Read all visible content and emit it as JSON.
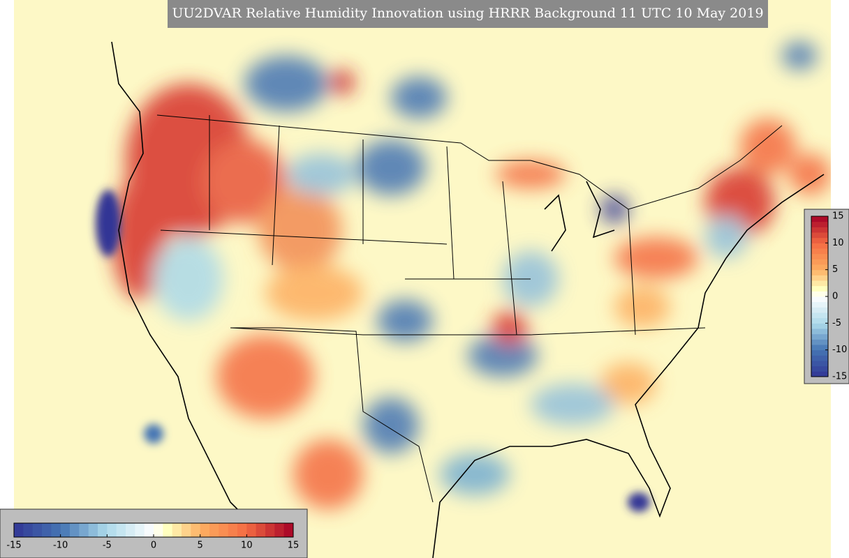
{
  "title": "UU2DVAR Relative Humidity Innovation using HRRR Background 11 UTC 10 May 2019",
  "colorbars": [
    {
      "orientation": "horizontal",
      "range": [
        -15,
        15
      ],
      "ticks": [
        -15,
        -10,
        -5,
        0,
        5,
        10,
        15
      ]
    },
    {
      "orientation": "vertical",
      "range": [
        -15,
        15
      ],
      "ticks": [
        15,
        10,
        5,
        0,
        -5,
        -10,
        -15
      ]
    }
  ]
}
